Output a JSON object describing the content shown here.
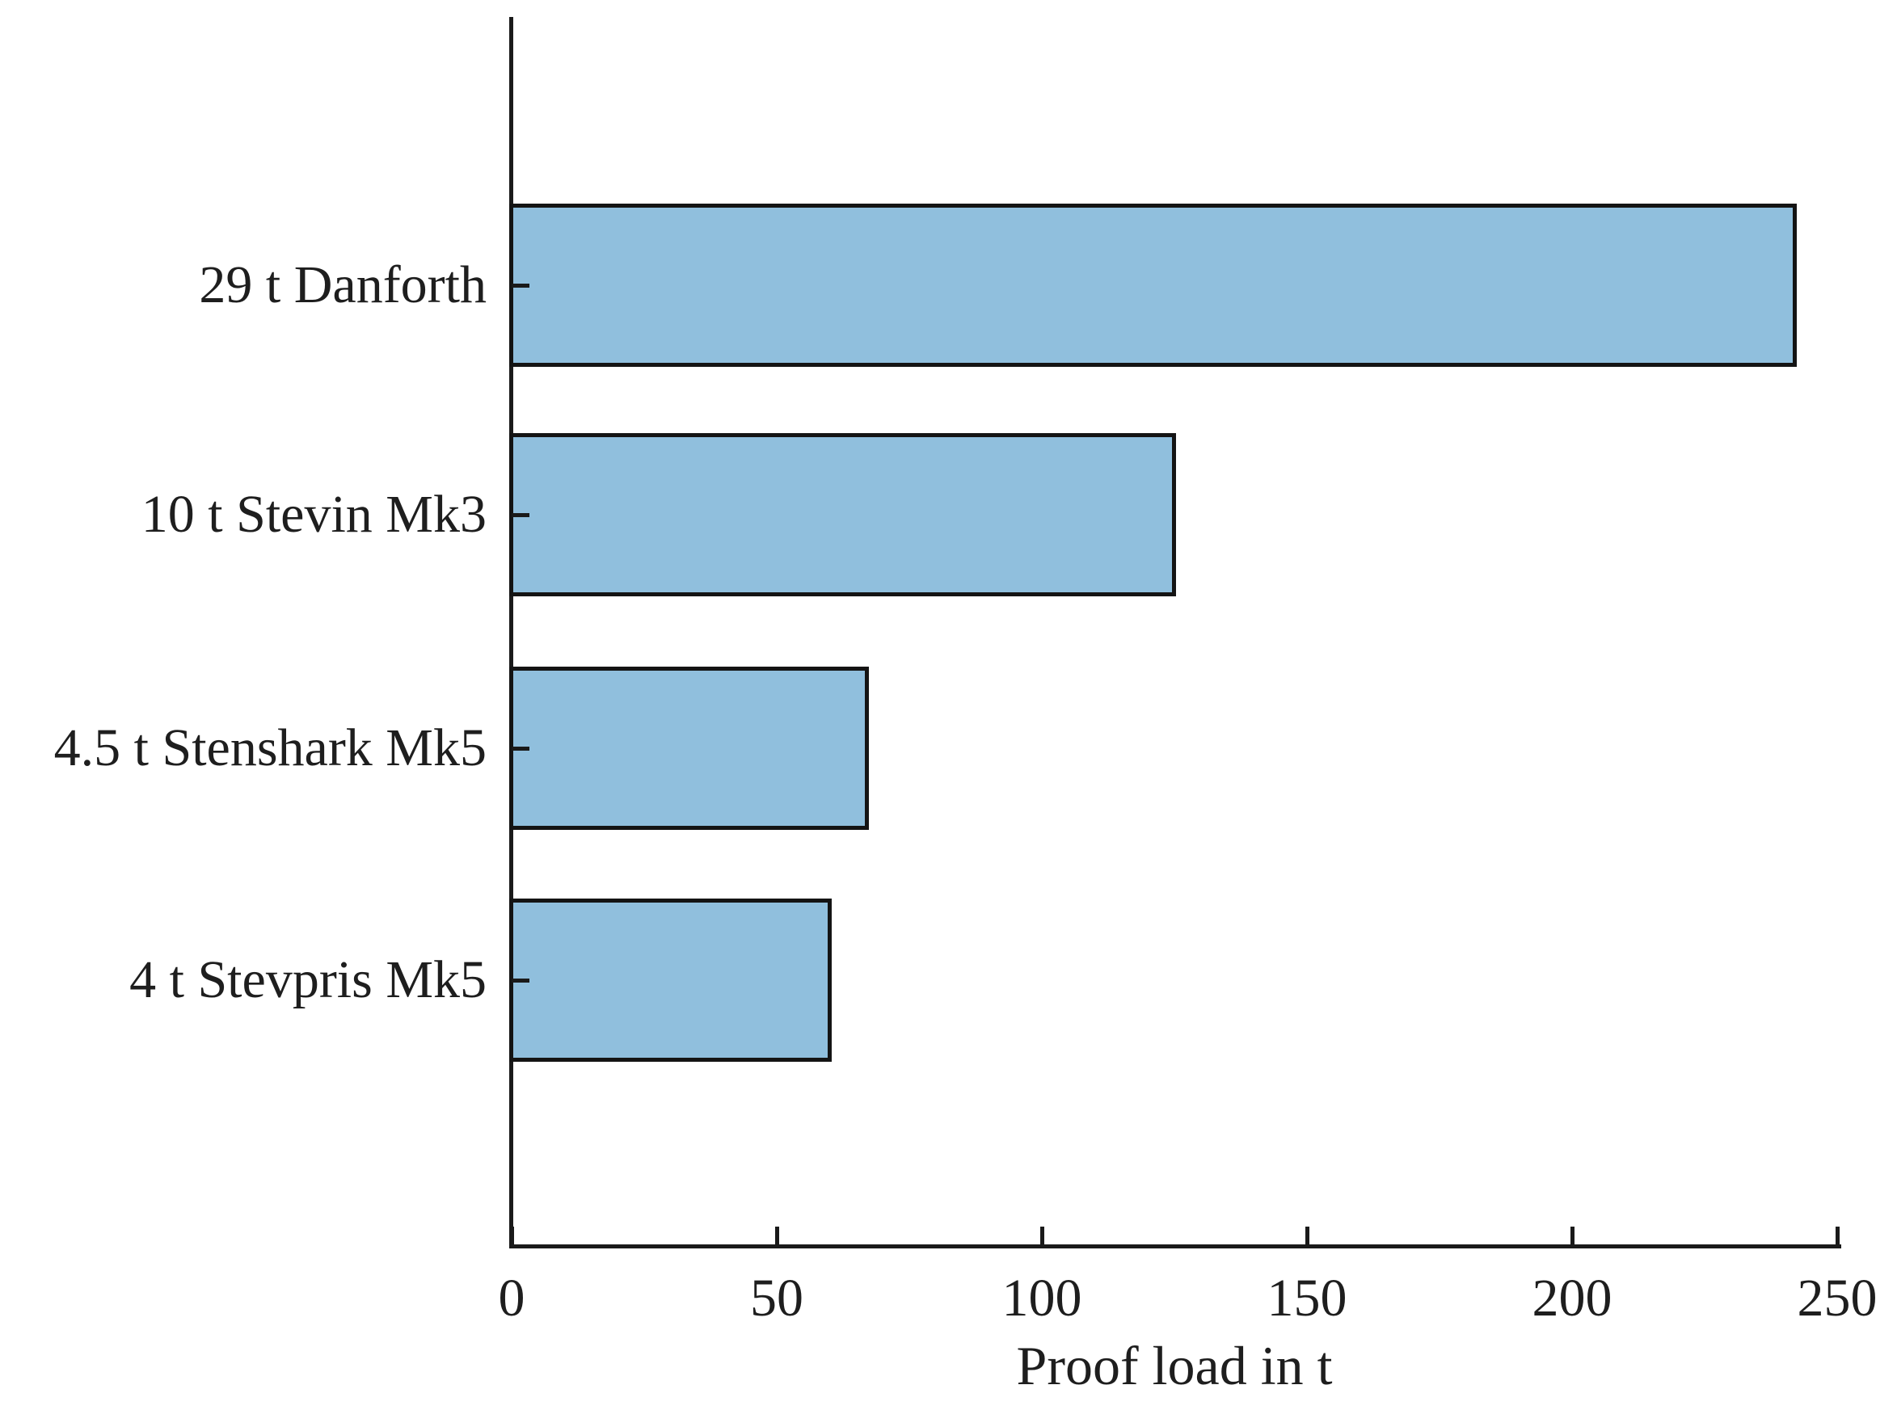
{
  "chart_data": {
    "type": "bar",
    "orientation": "horizontal",
    "title": "",
    "xlabel": "Proof load in t",
    "ylabel": "",
    "categories": [
      "29 t Danforth",
      "10 t Stevin Mk3",
      "4.5 t Stenshark Mk5",
      "4 t Stevpris Mk5"
    ],
    "values": [
      242,
      125,
      67,
      60
    ],
    "xlim": [
      0,
      250
    ],
    "xticks": [
      0,
      50,
      100,
      150,
      200,
      250
    ],
    "grid": false,
    "legend": false,
    "colors": {
      "bar_fill": "#90bfdd",
      "bar_edge": "#141414",
      "axis": "#1a1a1a",
      "text": "#1e1e1e",
      "background": "#ffffff"
    }
  }
}
